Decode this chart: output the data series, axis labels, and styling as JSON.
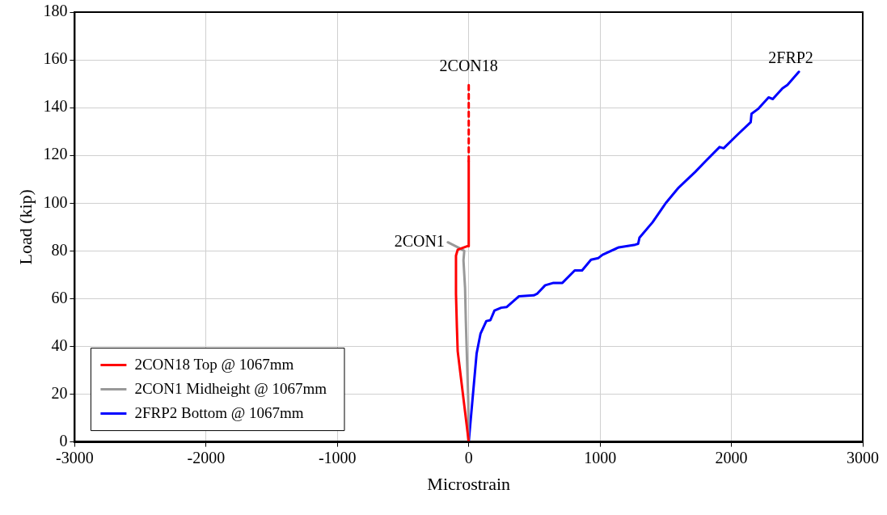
{
  "chart_data": {
    "type": "line",
    "xlabel": "Microstrain",
    "ylabel": "Load (kip)",
    "xlim": [
      -3000,
      3000
    ],
    "xticks": [
      -3000,
      -2000,
      -1000,
      0,
      1000,
      2000,
      3000
    ],
    "ylim": [
      0,
      180
    ],
    "yticks": [
      0,
      20,
      40,
      60,
      80,
      100,
      120,
      140,
      160,
      180
    ],
    "grid": true,
    "legend": "bottom left",
    "marker": "none",
    "line_style": "solid",
    "series": [
      {
        "name": "2CON18 Top @ 1067mm",
        "color": "#ff0000",
        "x": [
          0,
          -84,
          -90,
          -97,
          -97,
          -84,
          -9,
          -3,
          0
        ],
        "values": [
          0,
          38,
          48,
          62,
          78,
          80.5,
          82,
          82,
          117.6
        ]
      },
      {
        "name": "2CON1 Midheight @ 1067mm",
        "color": "#999999",
        "x": [
          0,
          -3,
          -22,
          -28,
          -40,
          -34,
          -65,
          -159
        ],
        "values": [
          0,
          16,
          50.6,
          64.5,
          76,
          80,
          81,
          83.6
        ]
      },
      {
        "name": "2FRP2 Bottom @ 1067mm",
        "color": "#0000ff",
        "x": [
          0,
          60,
          90,
          134,
          165,
          196,
          247,
          290,
          383,
          495,
          520,
          582,
          645,
          713,
          807,
          863,
          931,
          987,
          1019,
          1143,
          1268,
          1290,
          1300,
          1400,
          1500,
          1598,
          1723,
          1804,
          1910,
          1941,
          2047,
          2147,
          2153,
          2202,
          2283,
          2315,
          2389,
          2427,
          2514
        ],
        "values": [
          0,
          37,
          45.4,
          50.6,
          51,
          55,
          56.2,
          56.5,
          61,
          61.4,
          62,
          65.6,
          66.6,
          66.6,
          71.8,
          71.8,
          76.3,
          77,
          78.4,
          81.5,
          82.6,
          83,
          85.5,
          92,
          100,
          106.5,
          113,
          117.6,
          123.5,
          123,
          128.7,
          133.9,
          137.4,
          139.4,
          144.3,
          143.6,
          148.1,
          149.5,
          155
        ]
      },
      {
        "color": "#ff0000",
        "line_style": "dashed",
        "x": [
          0,
          0
        ],
        "values": [
          117.6,
          151
        ]
      }
    ],
    "annotations": [
      {
        "text": "2CON18",
        "x": 0,
        "y": 151
      },
      {
        "text": "2CON1",
        "x": -159,
        "y": 83.6
      },
      {
        "text": "2FRP2",
        "x": 2514,
        "y": 155
      }
    ]
  }
}
